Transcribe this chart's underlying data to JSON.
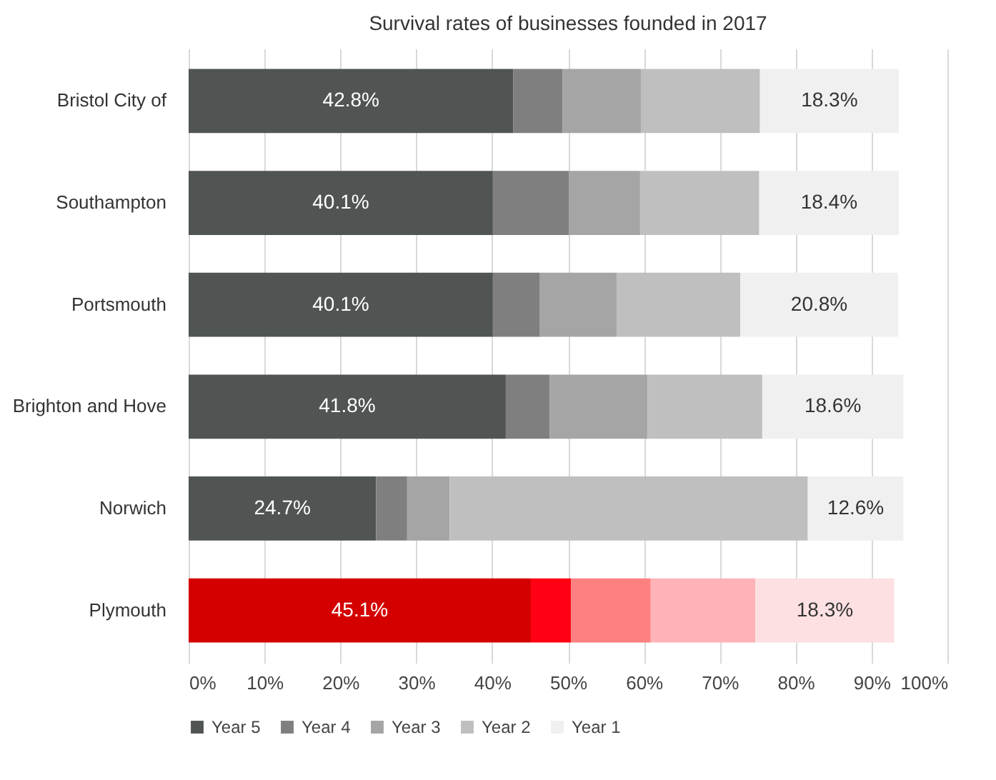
{
  "chart_data": {
    "type": "bar",
    "orientation": "horizontal",
    "stacked": true,
    "title": "Survival rates of businesses founded in 2017",
    "categories": [
      "Bristol City of",
      "Southampton",
      "Portsmouth",
      "Brighton and Hove",
      "Norwich",
      "Plymouth"
    ],
    "series": [
      {
        "name": "Year 5",
        "color": "#505553",
        "colors": [
          "#505553",
          "#505553",
          "#505553",
          "#505553",
          "#505553",
          "#d40000"
        ],
        "values": [
          42.8,
          40.1,
          40.1,
          41.8,
          24.7,
          45.1
        ],
        "value_labels": [
          "42.8%",
          "40.1%",
          "40.1%",
          "41.8%",
          "24.7%",
          "45.1%"
        ]
      },
      {
        "name": "Year 4",
        "color": "#7f7f7f",
        "colors": [
          "#7f7f7f",
          "#7f7f7f",
          "#7f7f7f",
          "#7f7f7f",
          "#7f7f7f",
          "#ff0015"
        ],
        "values": [
          6.5,
          10.0,
          6.2,
          5.8,
          4.1,
          5.3
        ]
      },
      {
        "name": "Year 3",
        "color": "#a5a5a5",
        "colors": [
          "#a5a5a5",
          "#a5a5a5",
          "#a5a5a5",
          "#a5a5a5",
          "#a5a5a5",
          "#ff8080"
        ],
        "values": [
          10.3,
          9.4,
          10.1,
          12.9,
          5.6,
          10.5
        ]
      },
      {
        "name": "Year 2",
        "color": "#bfbfbf",
        "colors": [
          "#bfbfbf",
          "#bfbfbf",
          "#bfbfbf",
          "#bfbfbf",
          "#bfbfbf",
          "#ffb3b8"
        ],
        "values": [
          15.7,
          15.7,
          16.3,
          15.1,
          47.2,
          13.8
        ]
      },
      {
        "name": "Year 1",
        "color": "#f0f0f0",
        "colors": [
          "#f0f0f0",
          "#f0f0f0",
          "#f0f0f0",
          "#f0f0f0",
          "#f0f0f0",
          "#fde0e2"
        ],
        "values": [
          18.3,
          18.4,
          20.8,
          18.6,
          12.6,
          18.3
        ],
        "value_labels": [
          "18.3%",
          "18.4%",
          "20.8%",
          "18.6%",
          "12.6%",
          "18.3%"
        ]
      }
    ],
    "xlim": [
      0,
      100
    ],
    "xticks": [
      {
        "value": 0,
        "label": "0%"
      },
      {
        "value": 10,
        "label": "10%"
      },
      {
        "value": 20,
        "label": "20%"
      },
      {
        "value": 30,
        "label": "30%"
      },
      {
        "value": 40,
        "label": "40%"
      },
      {
        "value": 50,
        "label": "50%"
      },
      {
        "value": 60,
        "label": "60%"
      },
      {
        "value": 70,
        "label": "70%"
      },
      {
        "value": 80,
        "label": "80%"
      },
      {
        "value": 90,
        "label": "90%"
      },
      {
        "value": 100,
        "label": "100%"
      }
    ],
    "grid": "x",
    "legend": "bottom"
  }
}
